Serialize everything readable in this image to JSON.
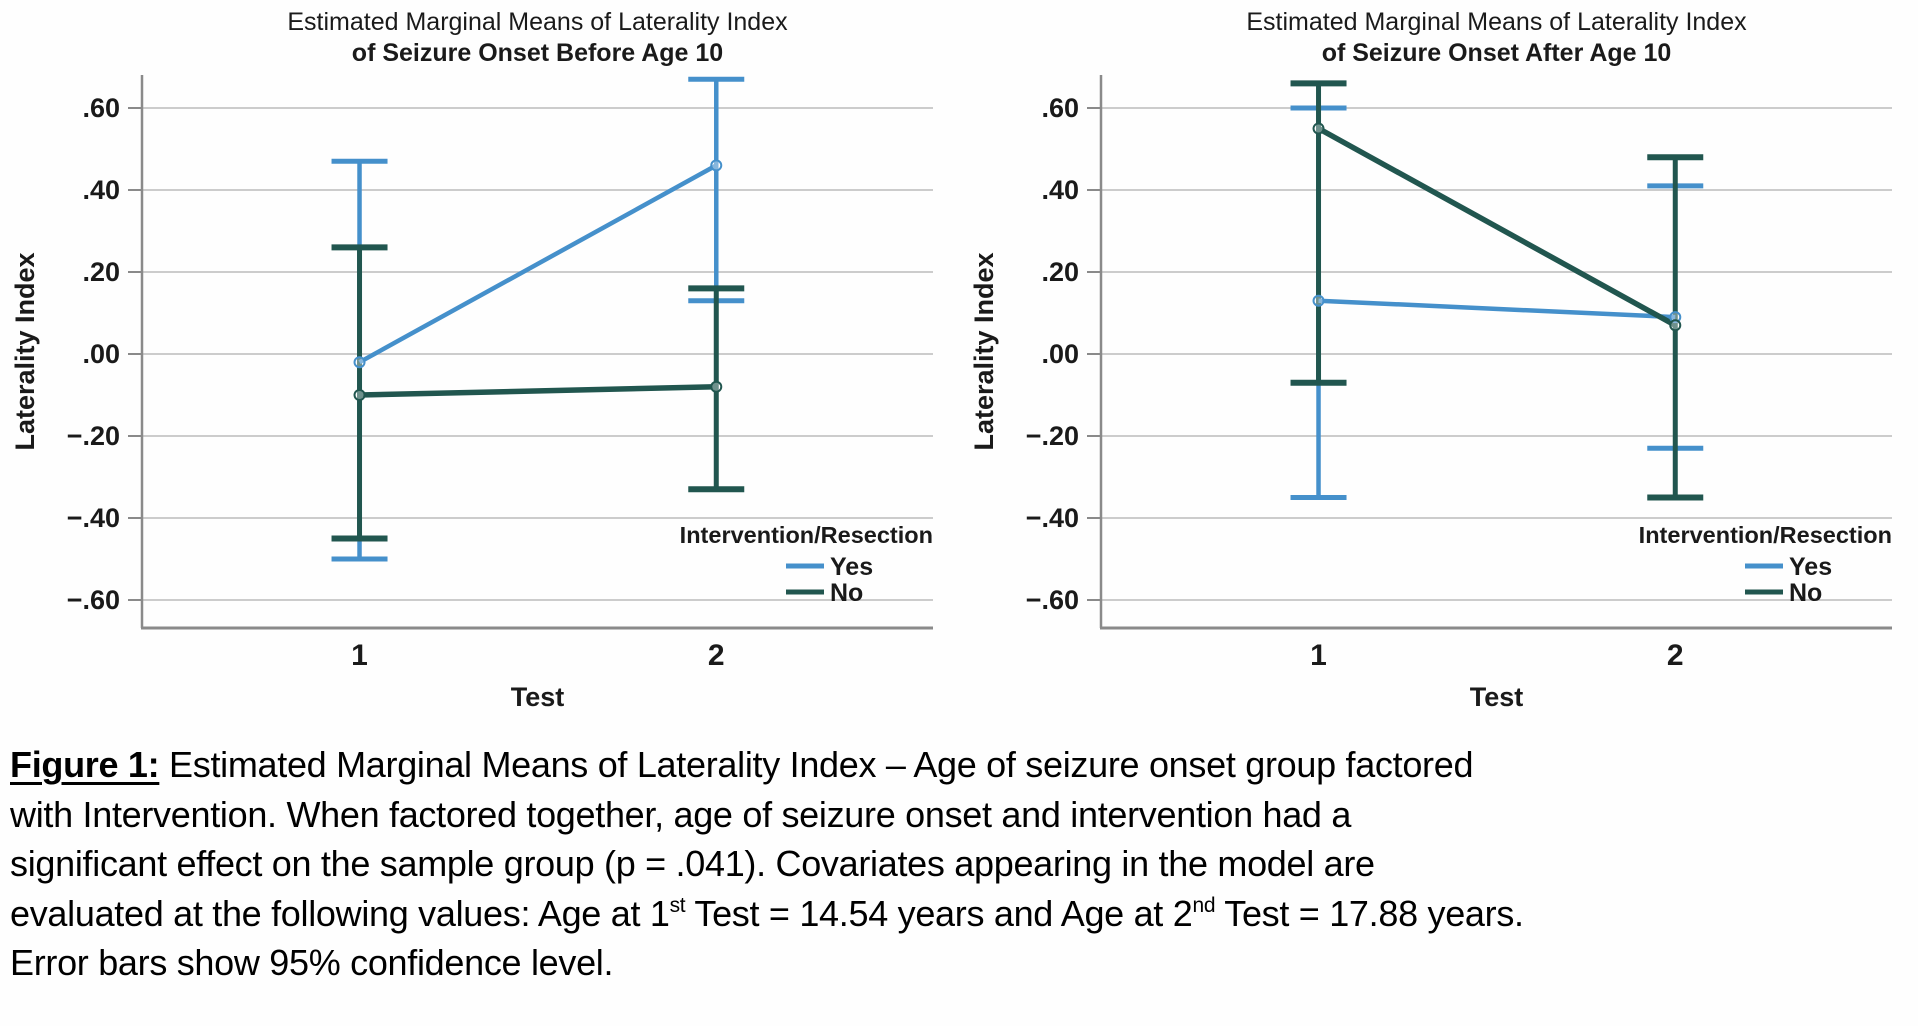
{
  "chart_data": [
    {
      "type": "line",
      "title": "Estimated Marginal Means of Laterality Index",
      "subtitle": "of Seizure Onset Before Age 10",
      "xlabel": "Test",
      "ylabel": "Laterality Index",
      "x_categories": [
        "1",
        "2"
      ],
      "y_tick_labels": [
        ".60",
        ".40",
        ".20",
        ".00",
        "−.20",
        "−.40",
        "−.60"
      ],
      "y_tick_values": [
        0.6,
        0.4,
        0.2,
        0.0,
        -0.2,
        -0.4,
        -0.6
      ],
      "ylim": [
        -0.68,
        0.68
      ],
      "grid": true,
      "error_bars_note": "95% confidence level",
      "legend": {
        "title": "Intervention/Resection",
        "position": "bottom-right",
        "items": [
          {
            "label": "Yes",
            "color": "#4590cb"
          },
          {
            "label": "No",
            "color": "#21564f"
          }
        ]
      },
      "series": [
        {
          "name": "Yes",
          "color": "#4590cb",
          "values": [
            -0.02,
            0.46
          ],
          "ci_low": [
            -0.5,
            0.13
          ],
          "ci_high": [
            0.47,
            0.67
          ]
        },
        {
          "name": "No",
          "color": "#21564f",
          "values": [
            -0.1,
            -0.08
          ],
          "ci_low": [
            -0.45,
            -0.33
          ],
          "ci_high": [
            0.26,
            0.16
          ]
        }
      ]
    },
    {
      "type": "line",
      "title": "Estimated Marginal Means of Laterality Index",
      "subtitle": "of Seizure Onset After Age 10",
      "xlabel": "Test",
      "ylabel": "Laterality Index",
      "x_categories": [
        "1",
        "2"
      ],
      "y_tick_labels": [
        ".60",
        ".40",
        ".20",
        ".00",
        "−.20",
        "−.40",
        "−.60"
      ],
      "y_tick_values": [
        0.6,
        0.4,
        0.2,
        0.0,
        -0.2,
        -0.4,
        -0.6
      ],
      "ylim": [
        -0.68,
        0.68
      ],
      "grid": true,
      "error_bars_note": "95% confidence level",
      "legend": {
        "title": "Intervention/Resection",
        "position": "bottom-right",
        "items": [
          {
            "label": "Yes",
            "color": "#4590cb"
          },
          {
            "label": "No",
            "color": "#21564f"
          }
        ]
      },
      "series": [
        {
          "name": "Yes",
          "color": "#4590cb",
          "values": [
            0.13,
            0.09
          ],
          "ci_low": [
            -0.35,
            -0.23
          ],
          "ci_high": [
            0.6,
            0.41
          ]
        },
        {
          "name": "No",
          "color": "#21564f",
          "values": [
            0.55,
            0.07
          ],
          "ci_low": [
            -0.07,
            -0.35
          ],
          "ci_high": [
            0.66,
            0.48
          ]
        }
      ]
    }
  ],
  "caption": {
    "lines": [
      [
        {
          "text": "Figure 1:",
          "bold": true,
          "underline": true
        },
        {
          "text": " Estimated Marginal Means of Laterality Index – Age of seizure onset group factored"
        }
      ],
      [
        {
          "text": "with Intervention. When factored together, age of seizure onset and intervention had a"
        }
      ],
      [
        {
          "text": "significant effect on the sample group (p = .041). Covariates appearing in the model are"
        }
      ],
      [
        {
          "text": "evaluated at the following values: Age at 1"
        },
        {
          "text": "st",
          "sup": true
        },
        {
          "text": " Test = 14.54 years and Age at 2"
        },
        {
          "text": "nd",
          "sup": true
        },
        {
          "text": " Test = 17.88 years."
        }
      ],
      [
        {
          "text": "Error bars show 95% confidence level."
        }
      ]
    ]
  },
  "colors": {
    "yes_series": "#4590cb",
    "no_series": "#21564f",
    "gridline": "#bcbcbc",
    "axis": "#8a8a8a",
    "text": "#1a1a1a"
  }
}
